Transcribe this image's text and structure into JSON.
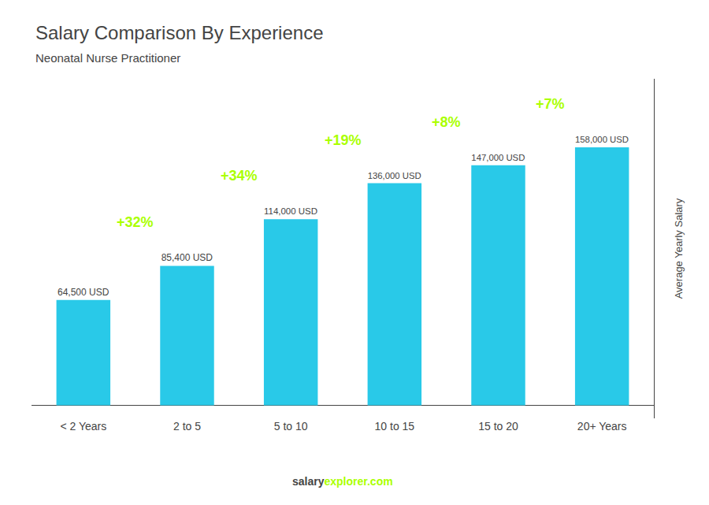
{
  "chart_data": {
    "type": "bar",
    "title": "Salary Comparison By Experience",
    "subtitle": "Neonatal Nurse Practitioner",
    "ylabel": "Average Yearly Salary",
    "categories": [
      "< 2 Years",
      "2 to 5",
      "5 to 10",
      "10 to 15",
      "15 to 20",
      "20+ Years"
    ],
    "values": [
      64500,
      85400,
      114000,
      136000,
      147000,
      158000
    ],
    "value_labels": [
      "64,500 USD",
      "85,400 USD",
      "114,000 USD",
      "136,000 USD",
      "147,000 USD",
      "158,000 USD"
    ],
    "data_labels": true,
    "color": "#29c9e8",
    "ylim": [
      -8000,
      200000
    ],
    "tick_labels": "x",
    "grid": false,
    "annotations": [
      {
        "text": "+32%",
        "color": "#aaff00"
      },
      {
        "text": "+34%",
        "color": "#aaff00"
      },
      {
        "text": "+19%",
        "color": "#aaff00"
      },
      {
        "text": "+8%",
        "color": "#aaff00"
      },
      {
        "text": "+7%",
        "color": "#aaff00"
      }
    ],
    "footer": [
      {
        "text": "salary"
      },
      {
        "text": "explorer.com",
        "color": "#aaff00"
      }
    ]
  }
}
